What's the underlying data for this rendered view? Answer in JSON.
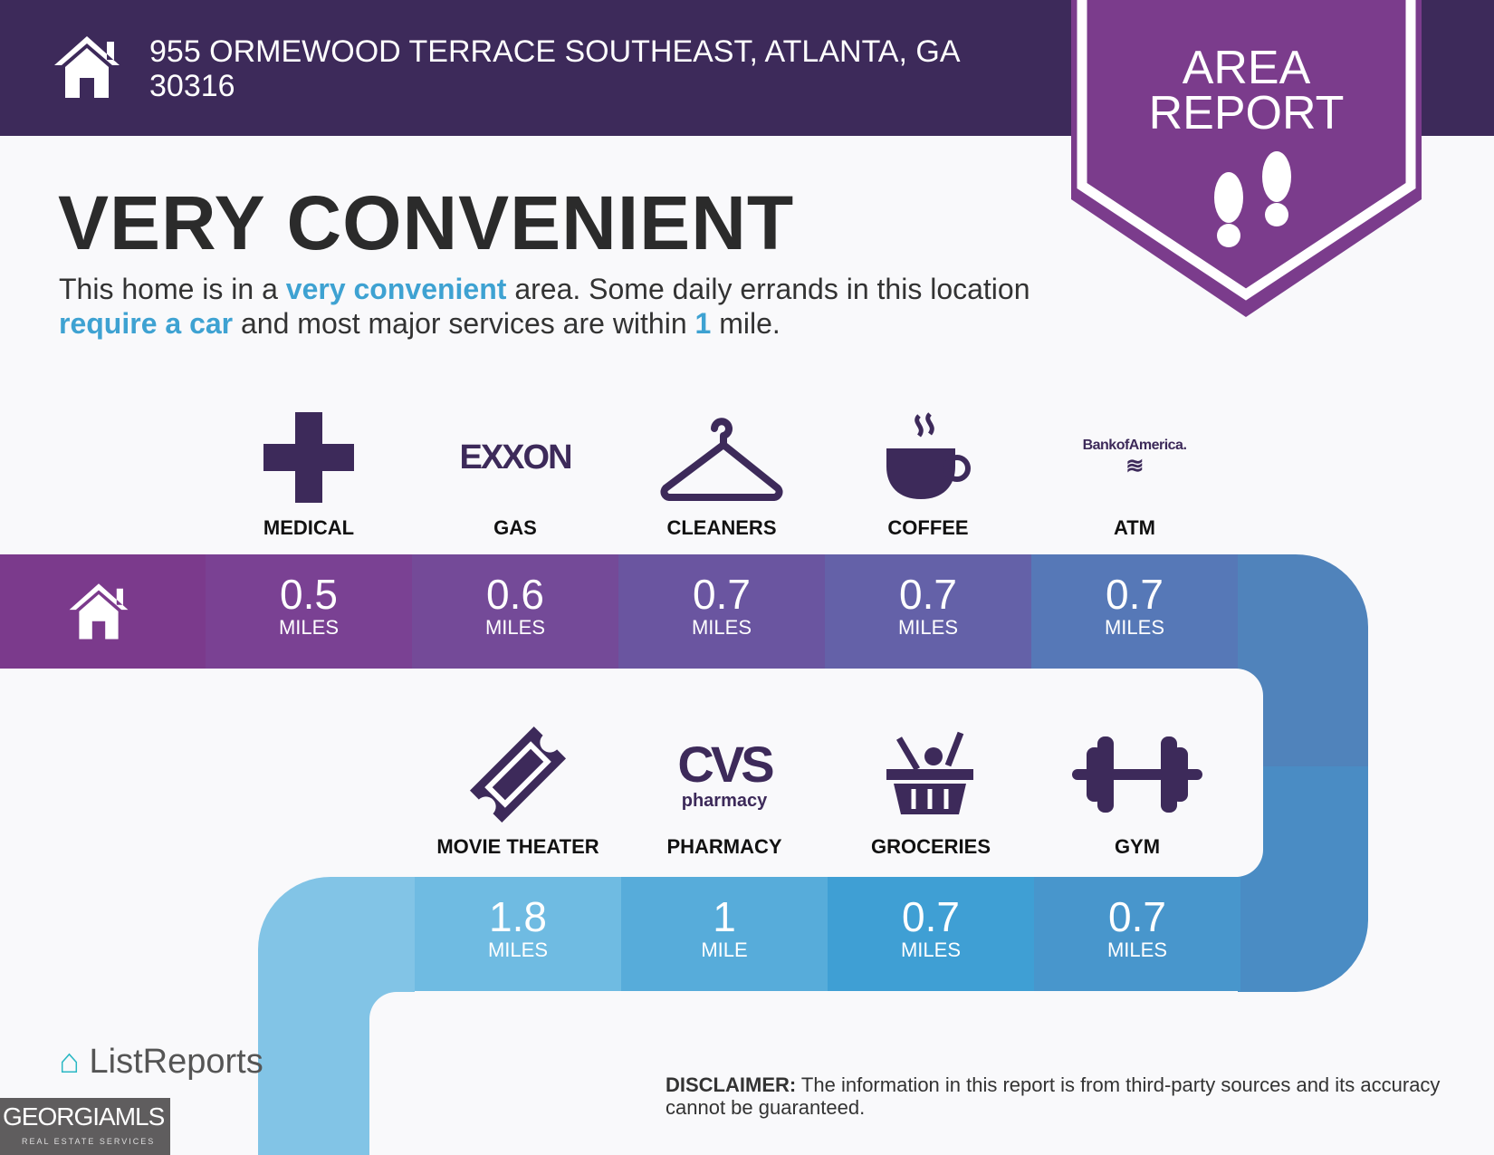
{
  "header": {
    "address": "955 ORMEWOOD TERRACE SOUTHEAST, ATLANTA, GA 30316",
    "badge_line1": "AREA",
    "badge_line2": "REPORT"
  },
  "summary": {
    "title": "VERY CONVENIENT",
    "p1": "This home is in a ",
    "h1": "very convenient",
    "p2": " area. Some daily errands in this location ",
    "h2": "require a car",
    "p3": " and most major services are within ",
    "h3": "1",
    "p4": " mile."
  },
  "row1": [
    {
      "label": "MEDICAL",
      "value": "0.5",
      "unit": "MILES",
      "icon": "medical-cross-icon"
    },
    {
      "label": "GAS",
      "value": "0.6",
      "unit": "MILES",
      "icon": "exxon-logo",
      "logo": "EXXON"
    },
    {
      "label": "CLEANERS",
      "value": "0.7",
      "unit": "MILES",
      "icon": "hanger-icon"
    },
    {
      "label": "COFFEE",
      "value": "0.7",
      "unit": "MILES",
      "icon": "coffee-cup-icon"
    },
    {
      "label": "ATM",
      "value": "0.7",
      "unit": "MILES",
      "icon": "bank-of-america-logo",
      "logo": "BankofAmerica."
    }
  ],
  "row2": [
    {
      "label": "MOVIE THEATER",
      "value": "1.8",
      "unit": "MILES",
      "icon": "ticket-icon"
    },
    {
      "label": "PHARMACY",
      "value": "1",
      "unit": "MILE",
      "icon": "cvs-pharmacy-logo",
      "logo": "CVS",
      "logo2": "pharmacy"
    },
    {
      "label": "GROCERIES",
      "value": "0.7",
      "unit": "MILES",
      "icon": "grocery-basket-icon"
    },
    {
      "label": "GYM",
      "value": "0.7",
      "unit": "MILES",
      "icon": "dumbbell-icon"
    }
  ],
  "footer": {
    "disclaimer_label": "DISCLAIMER:",
    "disclaimer": " The information in this report is from third-party sources and its accuracy cannot be guaranteed.",
    "brand": "ListReports",
    "mls": "GEORGIAMLS",
    "mls_sub": "REAL ESTATE SERVICES"
  },
  "colors": {
    "header": "#3d2a5a",
    "badge": "#7b3c8c",
    "icon": "#3d2a5a",
    "accent": "#3ea2d2"
  }
}
